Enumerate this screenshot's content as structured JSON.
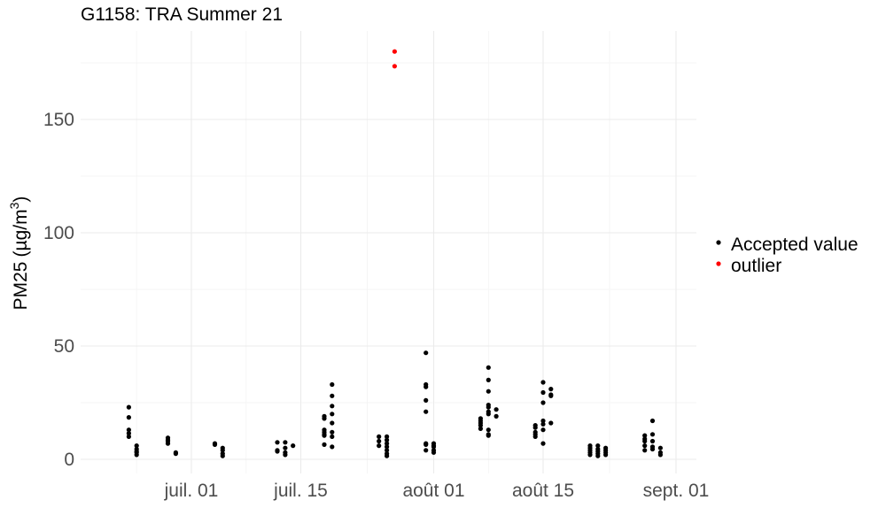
{
  "chart_data": {
    "type": "scatter",
    "title": "G1158: TRA Summer 21",
    "ylabel": "PM25",
    "ylabel_unit": "µg/m3",
    "xlabel": "",
    "x_tick_labels": [
      "juil. 01",
      "juil. 15",
      "août 01",
      "août 15",
      "sept. 01"
    ],
    "x_tick_dates": [
      "2021-07-01",
      "2021-07-15",
      "2021-08-01",
      "2021-08-15",
      "2021-09-01"
    ],
    "xlim": [
      "2021-06-26",
      "2021-09-02"
    ],
    "y_ticks": [
      0,
      50,
      100,
      150
    ],
    "ylim": [
      -7,
      190
    ],
    "grid": true,
    "legend_position": "right",
    "series": [
      {
        "name": "Accepted value",
        "color": "#000000",
        "points": [
          {
            "x": "2021-06-23",
            "y": 23
          },
          {
            "x": "2021-06-23",
            "y": 18.5
          },
          {
            "x": "2021-06-23",
            "y": 13
          },
          {
            "x": "2021-06-23",
            "y": 11.5
          },
          {
            "x": "2021-06-23",
            "y": 10
          },
          {
            "x": "2021-06-24",
            "y": 6
          },
          {
            "x": "2021-06-24",
            "y": 4.5
          },
          {
            "x": "2021-06-24",
            "y": 3.5
          },
          {
            "x": "2021-06-24",
            "y": 3
          },
          {
            "x": "2021-06-24",
            "y": 2
          },
          {
            "x": "2021-06-28",
            "y": 9.5
          },
          {
            "x": "2021-06-28",
            "y": 8.5
          },
          {
            "x": "2021-06-28",
            "y": 8
          },
          {
            "x": "2021-06-28",
            "y": 7
          },
          {
            "x": "2021-06-29",
            "y": 3
          },
          {
            "x": "2021-06-29",
            "y": 2.5
          },
          {
            "x": "2021-07-04",
            "y": 7
          },
          {
            "x": "2021-07-04",
            "y": 6.5
          },
          {
            "x": "2021-07-05",
            "y": 5
          },
          {
            "x": "2021-07-05",
            "y": 4
          },
          {
            "x": "2021-07-05",
            "y": 2.5
          },
          {
            "x": "2021-07-05",
            "y": 1.5
          },
          {
            "x": "2021-07-12",
            "y": 7.5
          },
          {
            "x": "2021-07-12",
            "y": 4
          },
          {
            "x": "2021-07-12",
            "y": 3.5
          },
          {
            "x": "2021-07-13",
            "y": 7.5
          },
          {
            "x": "2021-07-13",
            "y": 5
          },
          {
            "x": "2021-07-13",
            "y": 3
          },
          {
            "x": "2021-07-13",
            "y": 2
          },
          {
            "x": "2021-07-14",
            "y": 6
          },
          {
            "x": "2021-07-18",
            "y": 19
          },
          {
            "x": "2021-07-18",
            "y": 18
          },
          {
            "x": "2021-07-18",
            "y": 13
          },
          {
            "x": "2021-07-18",
            "y": 12
          },
          {
            "x": "2021-07-18",
            "y": 11
          },
          {
            "x": "2021-07-18",
            "y": 10.5
          },
          {
            "x": "2021-07-18",
            "y": 6.5
          },
          {
            "x": "2021-07-19",
            "y": 33
          },
          {
            "x": "2021-07-19",
            "y": 28
          },
          {
            "x": "2021-07-19",
            "y": 23.5
          },
          {
            "x": "2021-07-19",
            "y": 20
          },
          {
            "x": "2021-07-19",
            "y": 16
          },
          {
            "x": "2021-07-19",
            "y": 12
          },
          {
            "x": "2021-07-19",
            "y": 10
          },
          {
            "x": "2021-07-19",
            "y": 5.5
          },
          {
            "x": "2021-07-25",
            "y": 10
          },
          {
            "x": "2021-07-25",
            "y": 8
          },
          {
            "x": "2021-07-25",
            "y": 6
          },
          {
            "x": "2021-07-26",
            "y": 10
          },
          {
            "x": "2021-07-26",
            "y": 8.5
          },
          {
            "x": "2021-07-26",
            "y": 7
          },
          {
            "x": "2021-07-26",
            "y": 5.5
          },
          {
            "x": "2021-07-26",
            "y": 4
          },
          {
            "x": "2021-07-26",
            "y": 2.5
          },
          {
            "x": "2021-07-26",
            "y": 1.5
          },
          {
            "x": "2021-07-31",
            "y": 47
          },
          {
            "x": "2021-07-31",
            "y": 33
          },
          {
            "x": "2021-07-31",
            "y": 32
          },
          {
            "x": "2021-07-31",
            "y": 26
          },
          {
            "x": "2021-07-31",
            "y": 21
          },
          {
            "x": "2021-07-31",
            "y": 7
          },
          {
            "x": "2021-07-31",
            "y": 6.5
          },
          {
            "x": "2021-07-31",
            "y": 4
          },
          {
            "x": "2021-08-01",
            "y": 7
          },
          {
            "x": "2021-08-01",
            "y": 6
          },
          {
            "x": "2021-08-01",
            "y": 5.5
          },
          {
            "x": "2021-08-01",
            "y": 4
          },
          {
            "x": "2021-08-01",
            "y": 3
          },
          {
            "x": "2021-08-07",
            "y": 18
          },
          {
            "x": "2021-08-07",
            "y": 17
          },
          {
            "x": "2021-08-07",
            "y": 16
          },
          {
            "x": "2021-08-07",
            "y": 15
          },
          {
            "x": "2021-08-07",
            "y": 13.5
          },
          {
            "x": "2021-08-08",
            "y": 40.5
          },
          {
            "x": "2021-08-08",
            "y": 35
          },
          {
            "x": "2021-08-08",
            "y": 30
          },
          {
            "x": "2021-08-08",
            "y": 24
          },
          {
            "x": "2021-08-08",
            "y": 23
          },
          {
            "x": "2021-08-08",
            "y": 21
          },
          {
            "x": "2021-08-08",
            "y": 20
          },
          {
            "x": "2021-08-08",
            "y": 13
          },
          {
            "x": "2021-08-08",
            "y": 11
          },
          {
            "x": "2021-08-08",
            "y": 10.5
          },
          {
            "x": "2021-08-09",
            "y": 22
          },
          {
            "x": "2021-08-09",
            "y": 19
          },
          {
            "x": "2021-08-14",
            "y": 15
          },
          {
            "x": "2021-08-14",
            "y": 14
          },
          {
            "x": "2021-08-14",
            "y": 12
          },
          {
            "x": "2021-08-14",
            "y": 11
          },
          {
            "x": "2021-08-14",
            "y": 10
          },
          {
            "x": "2021-08-15",
            "y": 34
          },
          {
            "x": "2021-08-15",
            "y": 29.5
          },
          {
            "x": "2021-08-15",
            "y": 25
          },
          {
            "x": "2021-08-15",
            "y": 17
          },
          {
            "x": "2021-08-15",
            "y": 15.5
          },
          {
            "x": "2021-08-15",
            "y": 13
          },
          {
            "x": "2021-08-15",
            "y": 7
          },
          {
            "x": "2021-08-16",
            "y": 31
          },
          {
            "x": "2021-08-16",
            "y": 28.5
          },
          {
            "x": "2021-08-16",
            "y": 28
          },
          {
            "x": "2021-08-16",
            "y": 16
          },
          {
            "x": "2021-08-21",
            "y": 6
          },
          {
            "x": "2021-08-21",
            "y": 5
          },
          {
            "x": "2021-08-21",
            "y": 4
          },
          {
            "x": "2021-08-21",
            "y": 3
          },
          {
            "x": "2021-08-21",
            "y": 2
          },
          {
            "x": "2021-08-22",
            "y": 6
          },
          {
            "x": "2021-08-22",
            "y": 4.5
          },
          {
            "x": "2021-08-22",
            "y": 3.5
          },
          {
            "x": "2021-08-22",
            "y": 2.5
          },
          {
            "x": "2021-08-22",
            "y": 1.5
          },
          {
            "x": "2021-08-23",
            "y": 5
          },
          {
            "x": "2021-08-23",
            "y": 4
          },
          {
            "x": "2021-08-23",
            "y": 3
          },
          {
            "x": "2021-08-23",
            "y": 2
          },
          {
            "x": "2021-08-28",
            "y": 10.5
          },
          {
            "x": "2021-08-28",
            "y": 9
          },
          {
            "x": "2021-08-28",
            "y": 8
          },
          {
            "x": "2021-08-28",
            "y": 6
          },
          {
            "x": "2021-08-28",
            "y": 4
          },
          {
            "x": "2021-08-29",
            "y": 17
          },
          {
            "x": "2021-08-29",
            "y": 11
          },
          {
            "x": "2021-08-29",
            "y": 8
          },
          {
            "x": "2021-08-29",
            "y": 5.5
          },
          {
            "x": "2021-08-29",
            "y": 4.5
          },
          {
            "x": "2021-08-30",
            "y": 5
          },
          {
            "x": "2021-08-30",
            "y": 3
          },
          {
            "x": "2021-08-30",
            "y": 2
          }
        ]
      },
      {
        "name": "outlier",
        "color": "#ff0000",
        "points": [
          {
            "x": "2021-07-27",
            "y": 180
          },
          {
            "x": "2021-07-27",
            "y": 173.5
          }
        ]
      }
    ]
  }
}
